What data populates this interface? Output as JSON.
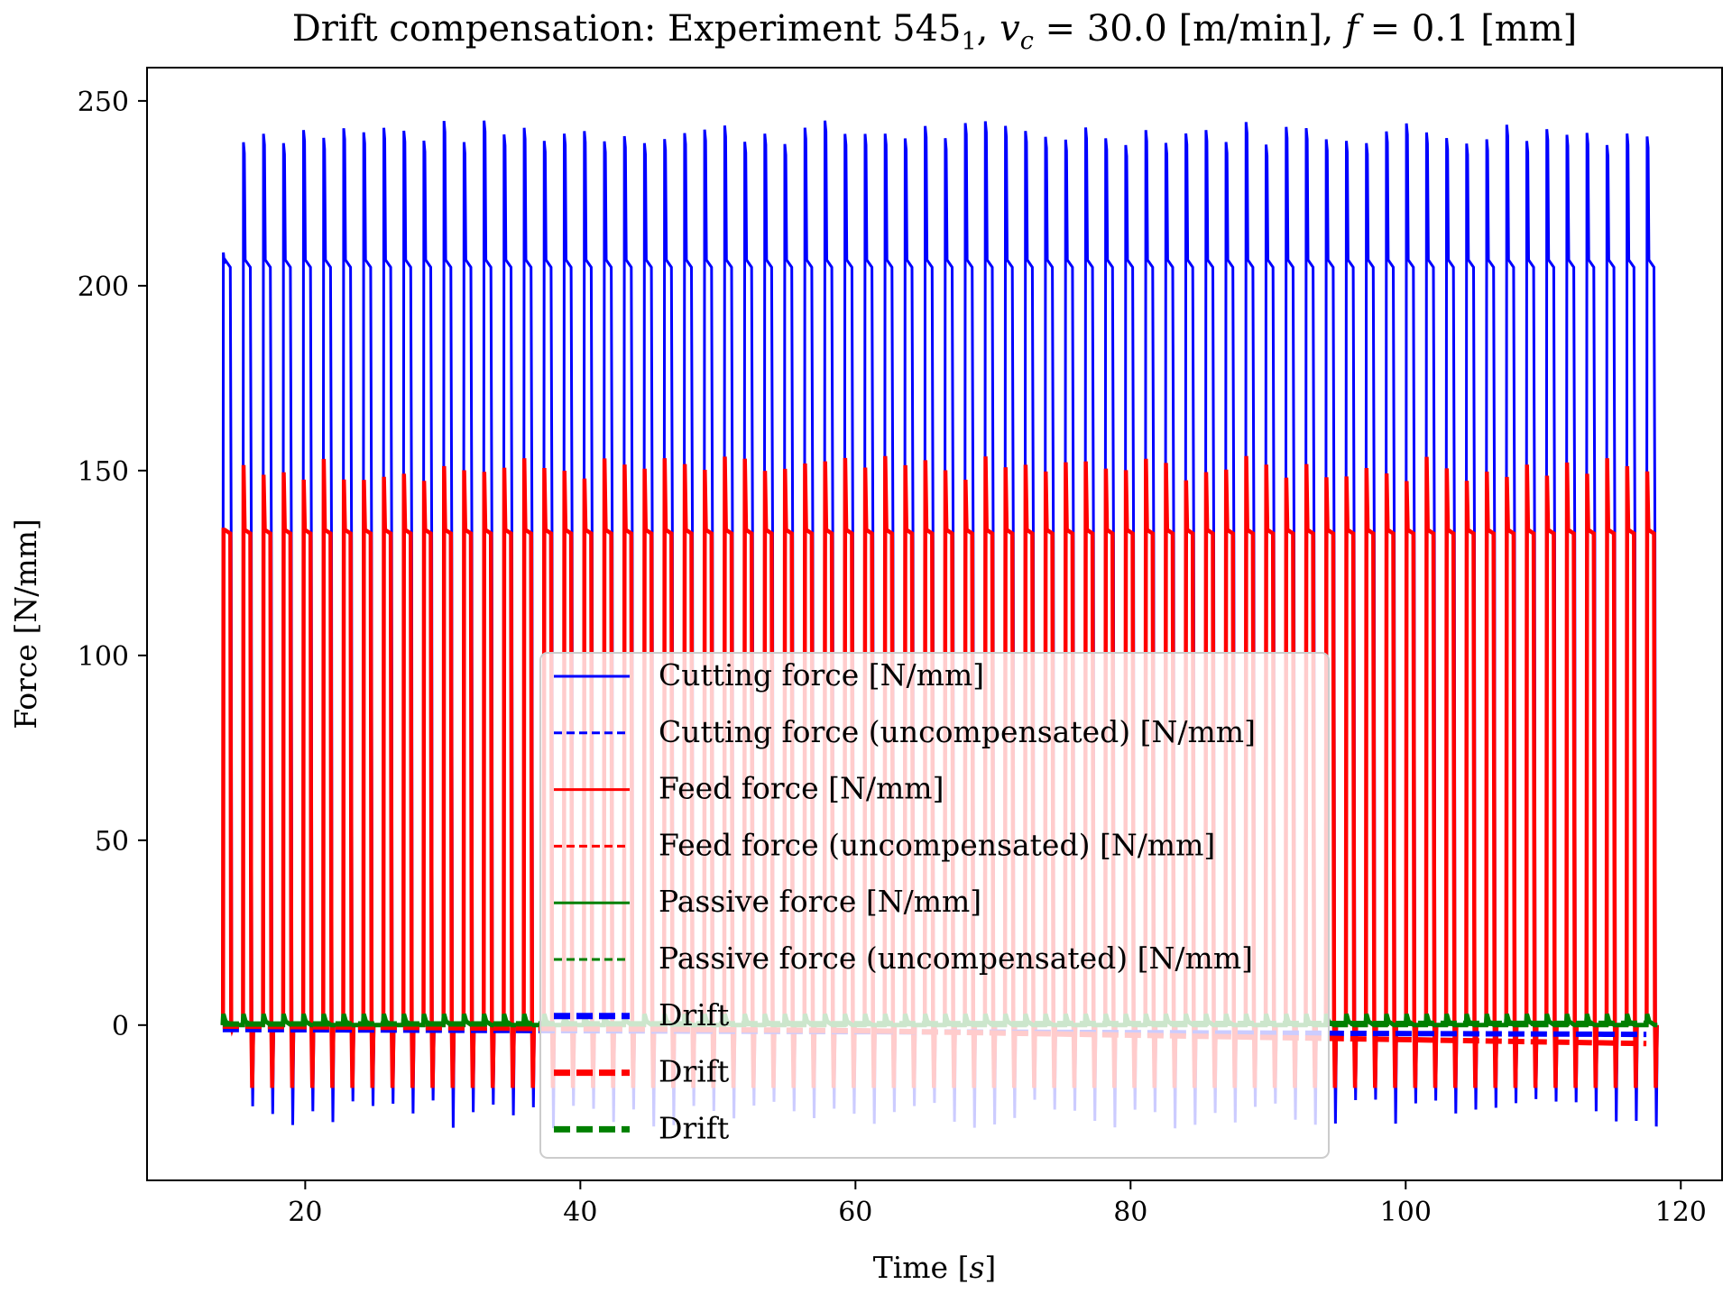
{
  "chart_data": {
    "type": "line",
    "title": "Drift compensation: Experiment 545_1, v_c = 30.0 [m/min], f = 0.1 [mm]",
    "title_parts": {
      "prefix": "Drift compensation: Experiment 545",
      "subscript_after_prefix": "1",
      "velocity_symbol": "v",
      "velocity_subscript": "c",
      "velocity_value": " = 30.0 [m/min], ",
      "feed_symbol": "f",
      "feed_value": " = 0.1 [mm]"
    },
    "xlabel": "Time",
    "xlabel_unit": "s",
    "ylabel": "Force [N/mm]",
    "xlim": [
      8.5,
      123
    ],
    "ylim": [
      -42,
      259
    ],
    "xticks": [
      20,
      40,
      60,
      80,
      100,
      120
    ],
    "yticks": [
      0,
      50,
      100,
      150,
      200,
      250
    ],
    "grid": false,
    "legend_position": "center-bottom",
    "cycles": {
      "start": 14.0,
      "end": 117.5,
      "count": 72,
      "cutting_peak_range": [
        238,
        245
      ],
      "cutting_plateau": 207,
      "cutting_valley": 131,
      "feed_peak_range": [
        147,
        154
      ],
      "feed_plateau": 133,
      "cutting_negative_range": [
        -20,
        -28
      ],
      "feed_negative": -17
    },
    "series": [
      {
        "name": "Cutting force [N/mm]",
        "color": "#0000ff",
        "style": "solid"
      },
      {
        "name": "Cutting force (uncompensated) [N/mm]",
        "color": "#0000ff",
        "style": "dashed"
      },
      {
        "name": "Feed force [N/mm]",
        "color": "#ff0000",
        "style": "solid"
      },
      {
        "name": "Feed force (uncompensated) [N/mm]",
        "color": "#ff0000",
        "style": "dashed"
      },
      {
        "name": "Passive force [N/mm]",
        "color": "#008000",
        "style": "solid"
      },
      {
        "name": "Passive force (uncompensated) [N/mm]",
        "color": "#008000",
        "style": "dashed"
      },
      {
        "name": "Drift",
        "color": "#0000ff",
        "style": "thick-dashed"
      },
      {
        "name": "Drift",
        "color": "#ff0000",
        "style": "thick-dashed"
      },
      {
        "name": "Drift",
        "color": "#008000",
        "style": "thick-dashed"
      }
    ],
    "drift": {
      "cutting": [
        [
          14,
          -1.2
        ],
        [
          117.5,
          -2.5
        ]
      ],
      "feed": [
        [
          14,
          -0.3
        ],
        [
          60,
          -1.5
        ],
        [
          117.5,
          -5.0
        ]
      ],
      "passive": [
        [
          14,
          0.3
        ],
        [
          117.5,
          0.5
        ]
      ]
    }
  }
}
